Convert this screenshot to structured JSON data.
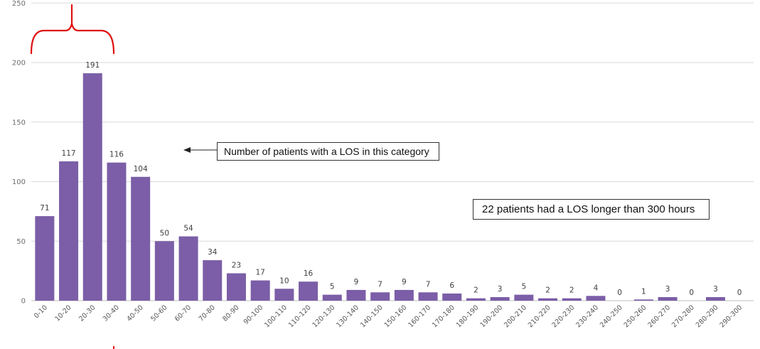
{
  "chart_data": {
    "type": "bar",
    "title": "",
    "xlabel": "",
    "ylabel": "",
    "ylim": [
      0,
      250
    ],
    "yticks": [
      0,
      50,
      100,
      150,
      200,
      250
    ],
    "grid": "horizontal",
    "bar_color": "#7b5ea7",
    "categories": [
      "0-10",
      "10-20",
      "20-30",
      "30-40",
      "40-50",
      "50-60",
      "60-70",
      "70-80",
      "80-90",
      "90-100",
      "100-110",
      "110-120",
      "120-130",
      "130-140",
      "140-150",
      "150-160",
      "160-170",
      "170-180",
      "180-190",
      "190-200",
      "200-210",
      "210-220",
      "220-230",
      "230-240",
      "240-250",
      "250-260",
      "260-270",
      "270-280",
      "280-290",
      "290-300"
    ],
    "values": [
      71,
      117,
      191,
      116,
      104,
      50,
      54,
      34,
      23,
      17,
      10,
      16,
      5,
      9,
      7,
      9,
      7,
      6,
      2,
      3,
      5,
      2,
      2,
      4,
      0,
      1,
      3,
      0,
      3,
      0
    ],
    "annotations": [
      "Number of patients with a LOS in this category",
      "22 patients had a LOS longer than 300 hours"
    ]
  },
  "colors": {
    "bar": "#7b5ea7",
    "bracket": "#e01010",
    "grid": "#d9d9d9",
    "axis": "#bfbfbf"
  }
}
